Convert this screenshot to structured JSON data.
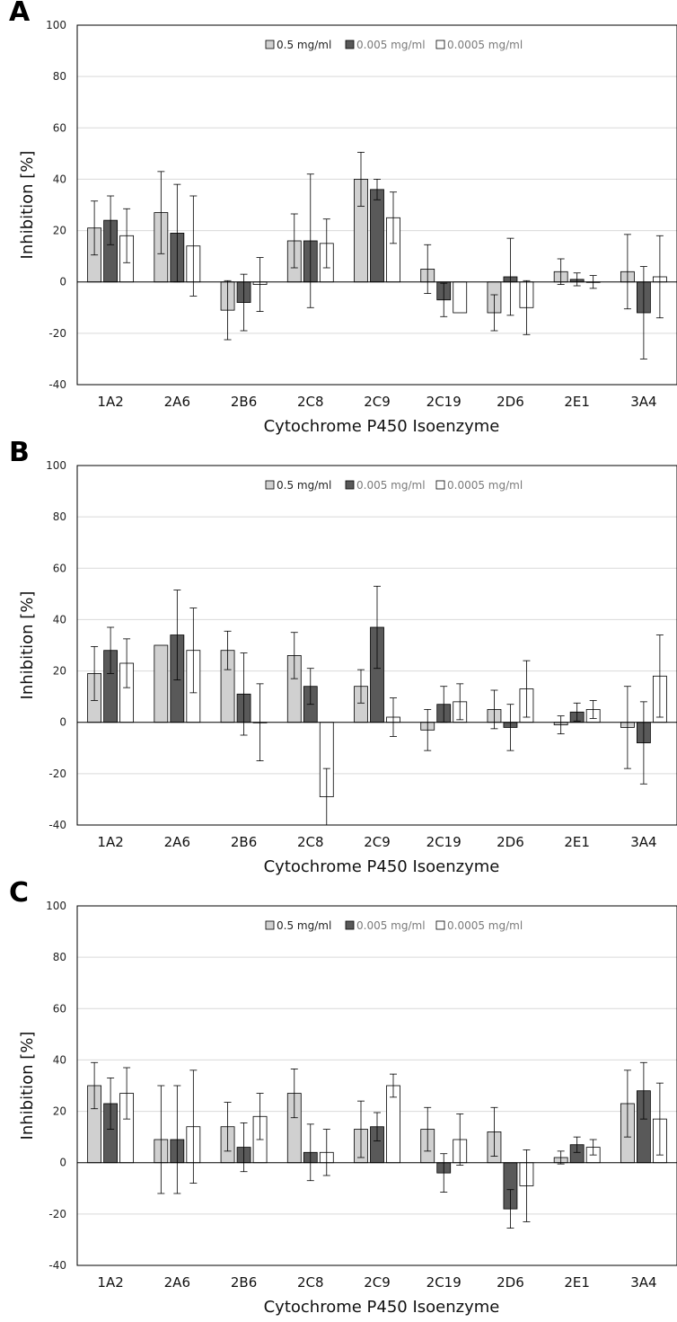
{
  "colors": {
    "series0": "#d0d0d0",
    "series1": "#595959",
    "series2": "#ffffff",
    "grid": "#d9d9d9",
    "stroke": "#000000"
  },
  "chart_data": [
    {
      "type": "bar",
      "panel_label": "A",
      "title": "",
      "xlabel": "Cytochrome P450 Isoenzyme",
      "ylabel": "Inhibition [%]",
      "ylim": [
        -40,
        100
      ],
      "yticks": [
        -40,
        -20,
        0,
        20,
        40,
        60,
        80,
        100
      ],
      "grid": true,
      "legend_position": "top-center",
      "categories": [
        "1A2",
        "2A6",
        "2B6",
        "2C8",
        "2C9",
        "2C19",
        "2D6",
        "2E1",
        "3A4"
      ],
      "series": [
        {
          "name": "0.5 mg/ml",
          "values": [
            21,
            27,
            -11,
            16,
            40,
            5,
            -12,
            4,
            4
          ],
          "errors": [
            10.5,
            16,
            11.5,
            10.5,
            10.5,
            9.5,
            7,
            5,
            14.5
          ]
        },
        {
          "name": "0.005 mg/ml",
          "values": [
            24,
            19,
            -8,
            16,
            36,
            -7,
            2,
            1,
            -12
          ],
          "errors": [
            9.5,
            19,
            11,
            26,
            4,
            6.5,
            15,
            2.5,
            18
          ]
        },
        {
          "name": "0.0005 mg/ml",
          "values": [
            18,
            14,
            -1,
            15,
            25,
            -12,
            -10,
            0,
            2
          ],
          "errors": [
            10.5,
            19.5,
            10.5,
            9.5,
            10,
            0,
            10.5,
            2.5,
            16
          ]
        }
      ]
    },
    {
      "type": "bar",
      "panel_label": "B",
      "title": "",
      "xlabel": "Cytochrome P450 Isoenzyme",
      "ylabel": "Inhibition [%]",
      "ylim": [
        -40,
        100
      ],
      "yticks": [
        -40,
        -20,
        0,
        20,
        40,
        60,
        80,
        100
      ],
      "grid": true,
      "legend_position": "top-center",
      "categories": [
        "1A2",
        "2A6",
        "2B6",
        "2C8",
        "2C9",
        "2C19",
        "2D6",
        "2E1",
        "3A4"
      ],
      "series": [
        {
          "name": "0.5 mg/ml",
          "values": [
            19,
            30,
            28,
            26,
            14,
            -3,
            5,
            -1,
            -2
          ],
          "errors": [
            10.5,
            0,
            7.5,
            9,
            6.5,
            8,
            7.5,
            3.5,
            16
          ]
        },
        {
          "name": "0.005 mg/ml",
          "values": [
            28,
            34,
            11,
            14,
            37,
            7,
            -2,
            4,
            -8
          ],
          "errors": [
            9,
            17.5,
            16,
            7,
            16,
            7,
            9,
            3.5,
            16
          ]
        },
        {
          "name": "0.0005 mg/ml",
          "values": [
            23,
            28,
            0,
            -29,
            2,
            8,
            13,
            5,
            18
          ],
          "errors": [
            9.5,
            16.5,
            15,
            11,
            7.5,
            7,
            11,
            3.5,
            16
          ]
        }
      ]
    },
    {
      "type": "bar",
      "panel_label": "C",
      "title": "",
      "xlabel": "Cytochrome P450 Isoenzyme",
      "ylabel": "Inhibition [%]",
      "ylim": [
        -40,
        100
      ],
      "yticks": [
        -40,
        -20,
        0,
        20,
        40,
        60,
        80,
        100
      ],
      "grid": true,
      "legend_position": "top-center",
      "categories": [
        "1A2",
        "2A6",
        "2B6",
        "2C8",
        "2C9",
        "2C19",
        "2D6",
        "2E1",
        "3A4"
      ],
      "series": [
        {
          "name": "0.5 mg/ml",
          "values": [
            30,
            9,
            14,
            27,
            13,
            13,
            12,
            2,
            23
          ],
          "errors": [
            9,
            21,
            9.5,
            9.5,
            11,
            8.5,
            9.5,
            2.5,
            13
          ]
        },
        {
          "name": "0.005 mg/ml",
          "values": [
            23,
            9,
            6,
            4,
            14,
            -4,
            -18,
            7,
            28
          ],
          "errors": [
            10,
            21,
            9.5,
            11,
            5.5,
            7.5,
            7.5,
            3,
            11
          ]
        },
        {
          "name": "0.0005 mg/ml",
          "values": [
            27,
            14,
            18,
            4,
            30,
            9,
            -9,
            6,
            17
          ],
          "errors": [
            10,
            22,
            9,
            9,
            4.5,
            10,
            14,
            3,
            14
          ]
        }
      ]
    }
  ]
}
